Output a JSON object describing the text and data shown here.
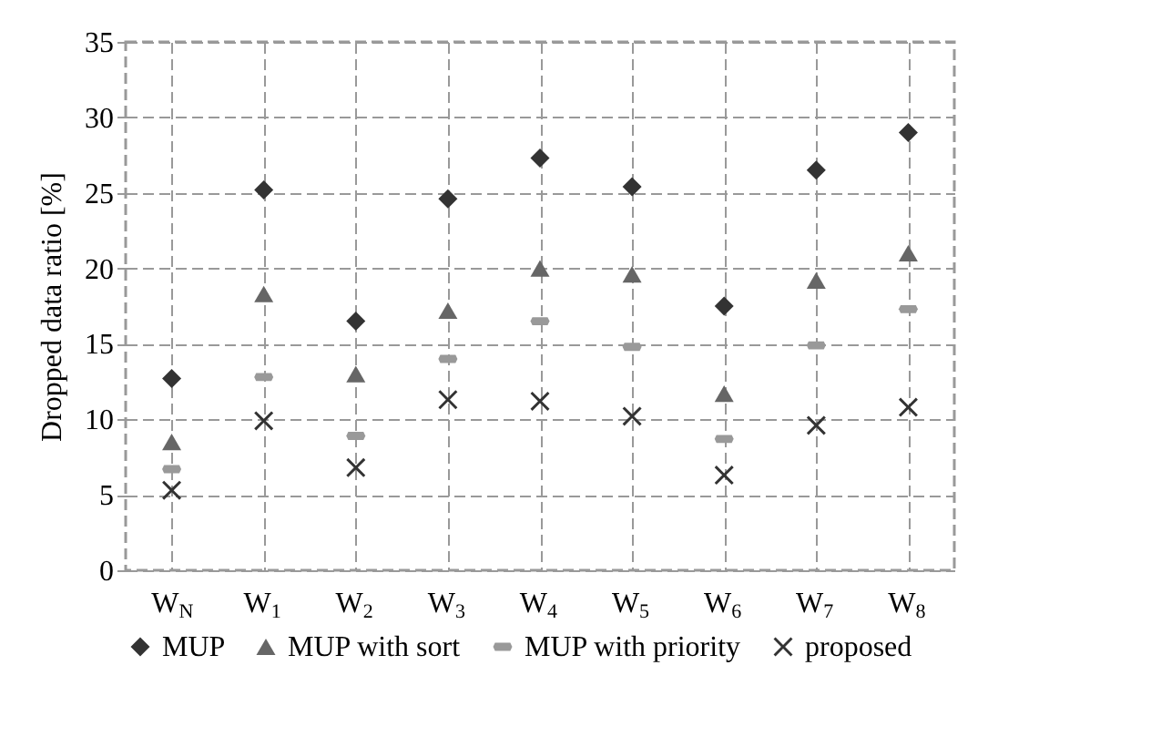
{
  "chart_data": {
    "type": "scatter",
    "ylabel": "Dropped data ratio [%]",
    "categories": [
      "W$_{N}$",
      "W$_{1}$",
      "W$_{2}$",
      "W$_{3}$",
      "W$_{4}$",
      "W$_{5}$",
      "W$_{6}$",
      "W$_{7}$",
      "W$_{8}$"
    ],
    "series": [
      {
        "name": "MUP",
        "color": "#333333",
        "marker": "diamond",
        "values": [
          12.7,
          25.2,
          16.5,
          24.6,
          27.3,
          25.4,
          17.5,
          26.5,
          29.0
        ]
      },
      {
        "name": "MUP with sort",
        "color": "#666666",
        "marker": "triangle",
        "values": [
          8.5,
          18.3,
          13.0,
          17.2,
          20.0,
          19.6,
          11.7,
          19.2,
          21.0
        ]
      },
      {
        "name": "MUP with priority",
        "color": "#999999",
        "values": [
          6.7,
          12.8,
          8.9,
          14.0,
          16.5,
          14.8,
          8.7,
          14.9,
          17.3
        ]
      },
      {
        "name": "proposed",
        "color": "#333333",
        "marker": "cross",
        "values": [
          5.3,
          9.9,
          6.8,
          11.3,
          11.2,
          10.2,
          6.3,
          9.6,
          10.8
        ]
      }
    ],
    "ylim": [
      0,
      35
    ],
    "yticks": [
      0,
      5,
      10,
      15,
      20,
      25,
      30,
      35
    ],
    "grid": true,
    "legend": "bottom"
  }
}
